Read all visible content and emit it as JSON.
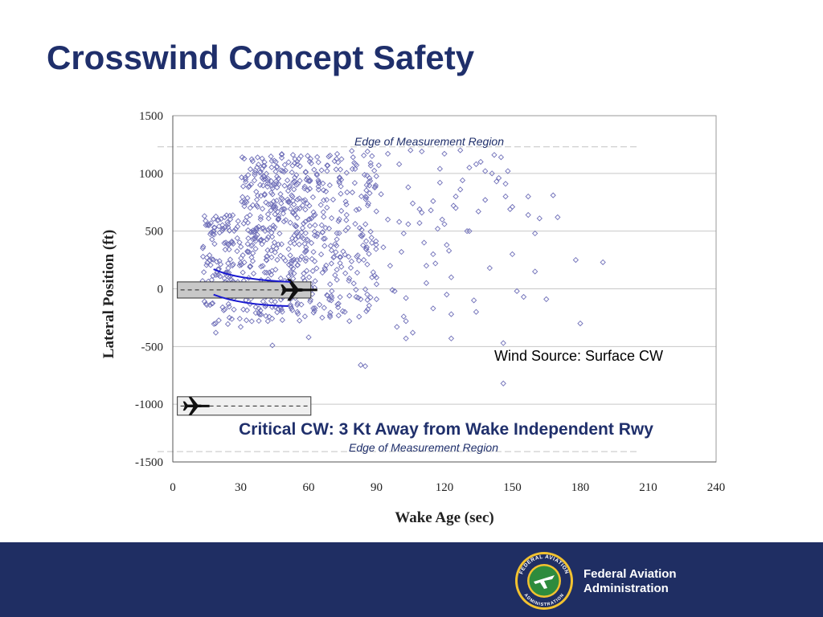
{
  "slide": {
    "title": "Crosswind Concept Safety",
    "agency_line1": "Federal Aviation",
    "agency_line2": "Administration",
    "seal_top_text": "FEDERAL AVIATION",
    "seal_bottom_text": "ADMINISTRATION"
  },
  "colors": {
    "title": "#1f2f6b",
    "footer_bg": "#1f2e63",
    "marker": "#6f6fb8",
    "annotation": "#1f2f6b",
    "wake_curve": "#1a1ad0"
  },
  "chart_data": {
    "type": "scatter",
    "title": "",
    "xlabel": "Wake Age (sec)",
    "ylabel": "Lateral Position (ft)",
    "xlim": [
      0,
      240
    ],
    "ylim": [
      -1500,
      1500
    ],
    "xticks": [
      0,
      30,
      60,
      90,
      120,
      150,
      180,
      210,
      240
    ],
    "yticks": [
      1500,
      1000,
      500,
      0,
      -500,
      -1000,
      -1500
    ],
    "grid": "horizontal",
    "marker": "open-diamond",
    "annotations": {
      "edge_top": "Edge of Measurement Region",
      "edge_bottom": "Edge of Measurement Region",
      "edge_lateral_ft": [
        1230,
        -1410
      ],
      "wind_source": "Wind Source: Surface CW",
      "critical": "Critical CW: 3 Kt Away from Wake Independent Rwy"
    },
    "runways": [
      {
        "name": "",
        "x_range": [
          2,
          61
        ],
        "y_range": [
          -80,
          60
        ],
        "aircraft_heading": "right"
      },
      {
        "name": "",
        "x_range": [
          2,
          61
        ],
        "y_range": [
          -1095,
          -935
        ],
        "aircraft_heading": "right"
      }
    ],
    "dense_cloud": [
      {
        "x_range": [
          13,
          30
        ],
        "y_range": [
          -320,
          640
        ],
        "n": 130
      },
      {
        "x_range": [
          30,
          45
        ],
        "y_range": [
          -300,
          1150
        ],
        "n": 200
      },
      {
        "x_range": [
          45,
          60
        ],
        "y_range": [
          -280,
          1200
        ],
        "n": 190
      },
      {
        "x_range": [
          60,
          75
        ],
        "y_range": [
          -260,
          1190
        ],
        "n": 130
      },
      {
        "x_range": [
          75,
          90
        ],
        "y_range": [
          -250,
          1200
        ],
        "n": 90
      }
    ],
    "points": [
      [
        14,
        630
      ],
      [
        14,
        -110
      ],
      [
        19,
        -380
      ],
      [
        22,
        -160
      ],
      [
        25,
        -250
      ],
      [
        27,
        -180
      ],
      [
        30,
        -330
      ],
      [
        33,
        -20
      ],
      [
        38,
        -170
      ],
      [
        42,
        -280
      ],
      [
        44,
        -490
      ],
      [
        48,
        -180
      ],
      [
        52,
        -140
      ],
      [
        55,
        -200
      ],
      [
        60,
        -420
      ],
      [
        66,
        -250
      ],
      [
        70,
        -100
      ],
      [
        73,
        -160
      ],
      [
        76,
        -200
      ],
      [
        78,
        -280
      ],
      [
        78,
        -60
      ],
      [
        78,
        90
      ],
      [
        81,
        -70
      ],
      [
        83,
        -90
      ],
      [
        83,
        -660
      ],
      [
        85,
        -670
      ],
      [
        88,
        100
      ],
      [
        90,
        40
      ],
      [
        90,
        -90
      ],
      [
        92,
        820
      ],
      [
        93,
        360
      ],
      [
        95,
        600
      ],
      [
        96,
        200
      ],
      [
        97,
        -10
      ],
      [
        98,
        -20
      ],
      [
        100,
        1080
      ],
      [
        100,
        580
      ],
      [
        101,
        320
      ],
      [
        102,
        480
      ],
      [
        102,
        -240
      ],
      [
        103,
        -80
      ],
      [
        103,
        -280
      ],
      [
        103,
        -430
      ],
      [
        104,
        560
      ],
      [
        104,
        880
      ],
      [
        105,
        1200
      ],
      [
        106,
        740
      ],
      [
        109,
        690
      ],
      [
        109,
        570
      ],
      [
        110,
        660
      ],
      [
        111,
        400
      ],
      [
        112,
        200
      ],
      [
        112,
        50
      ],
      [
        114,
        680
      ],
      [
        115,
        760
      ],
      [
        115,
        300
      ],
      [
        116,
        220
      ],
      [
        117,
        520
      ],
      [
        118,
        1040
      ],
      [
        119,
        600
      ],
      [
        120,
        560
      ],
      [
        121,
        380
      ],
      [
        121,
        -50
      ],
      [
        122,
        330
      ],
      [
        123,
        100
      ],
      [
        123,
        -220
      ],
      [
        123,
        -430
      ],
      [
        124,
        720
      ],
      [
        125,
        800
      ],
      [
        127,
        860
      ],
      [
        127,
        1200
      ],
      [
        130,
        500
      ],
      [
        131,
        500
      ],
      [
        133,
        -100
      ],
      [
        134,
        -200
      ],
      [
        135,
        670
      ],
      [
        138,
        770
      ],
      [
        142,
        1160
      ],
      [
        143,
        930
      ],
      [
        145,
        1140
      ],
      [
        147,
        800
      ],
      [
        148,
        1020
      ],
      [
        149,
        690
      ],
      [
        150,
        710
      ],
      [
        152,
        -20
      ],
      [
        155,
        -70
      ],
      [
        157,
        800
      ],
      [
        162,
        610
      ],
      [
        168,
        810
      ],
      [
        180,
        -300
      ],
      [
        131,
        1050
      ],
      [
        134,
        1080
      ],
      [
        136,
        1100
      ],
      [
        138,
        1020
      ],
      [
        141,
        1000
      ],
      [
        144,
        960
      ],
      [
        146,
        -470
      ],
      [
        146,
        -820
      ],
      [
        147,
        910
      ],
      [
        157,
        640
      ],
      [
        170,
        620
      ],
      [
        178,
        250
      ],
      [
        190,
        230
      ],
      [
        120,
        1170
      ],
      [
        110,
        1190
      ],
      [
        95,
        1170
      ],
      [
        88,
        1150
      ],
      [
        86,
        1190
      ],
      [
        91,
        1070
      ],
      [
        99,
        -330
      ],
      [
        106,
        -380
      ],
      [
        115,
        -170
      ],
      [
        140,
        180
      ],
      [
        160,
        150
      ],
      [
        165,
        -90
      ],
      [
        125,
        700
      ],
      [
        118,
        920
      ],
      [
        128,
        940
      ],
      [
        150,
        300
      ],
      [
        160,
        480
      ]
    ]
  }
}
